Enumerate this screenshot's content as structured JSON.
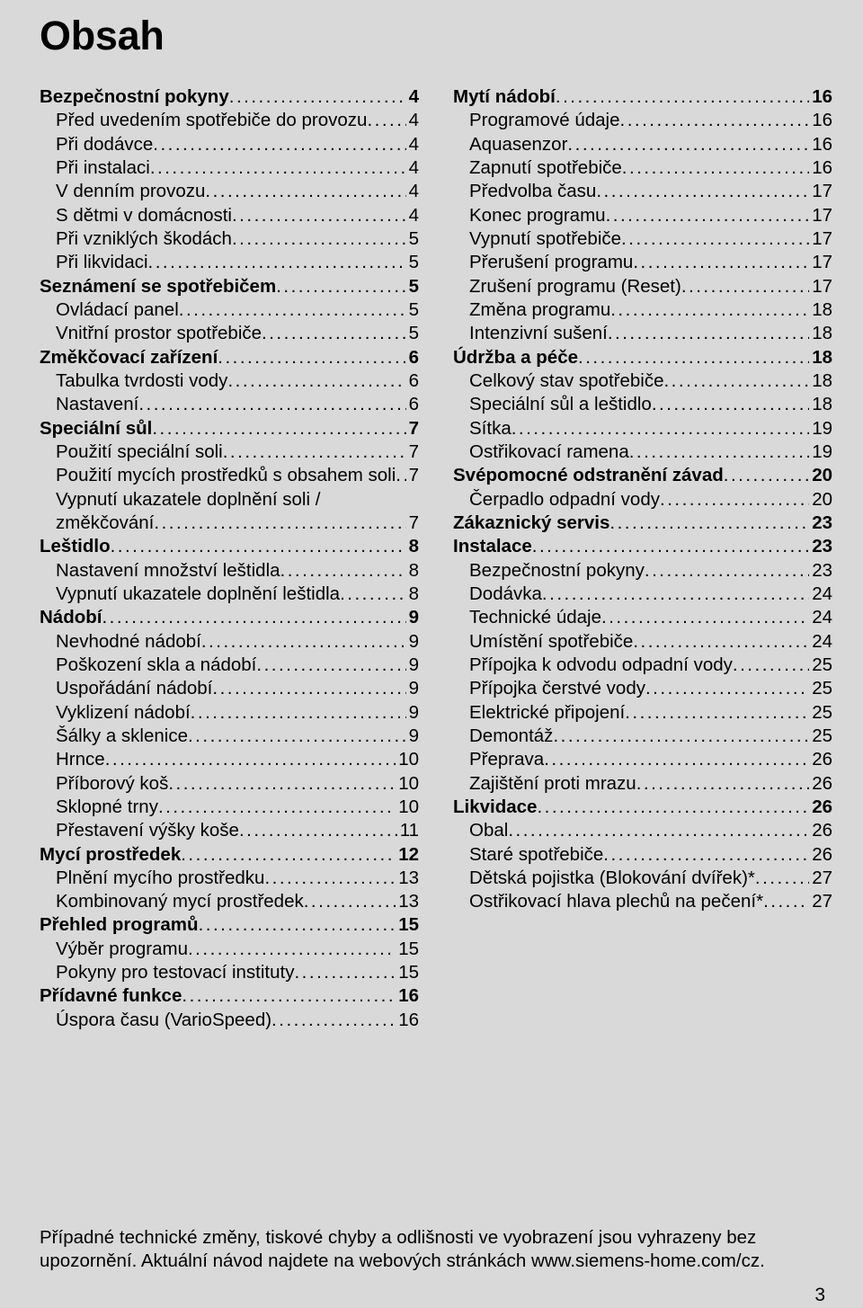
{
  "title": "Obsah",
  "left": [
    {
      "t": "s",
      "label": "Bezpečnostní pokyny",
      "page": "4"
    },
    {
      "t": "i",
      "label": "Před uvedením spotřebiče do provozu",
      "page": "4"
    },
    {
      "t": "i",
      "label": "Při dodávce",
      "page": "4"
    },
    {
      "t": "i",
      "label": "Při instalaci",
      "page": "4"
    },
    {
      "t": "i",
      "label": "V denním provozu",
      "page": "4"
    },
    {
      "t": "i",
      "label": "S dětmi v domácnosti",
      "page": "4"
    },
    {
      "t": "i",
      "label": "Při vzniklých škodách",
      "page": "5"
    },
    {
      "t": "i",
      "label": "Při likvidaci",
      "page": "5"
    },
    {
      "t": "s",
      "label": "Seznámení se spotřebičem",
      "page": "5"
    },
    {
      "t": "i",
      "label": "Ovládací panel",
      "page": "5"
    },
    {
      "t": "i",
      "label": "Vnitřní prostor spotřebiče",
      "page": "5"
    },
    {
      "t": "s",
      "label": "Změkčovací zařízení",
      "page": "6"
    },
    {
      "t": "i",
      "label": "Tabulka tvrdosti vody",
      "page": "6"
    },
    {
      "t": "i",
      "label": "Nastavení",
      "page": "6"
    },
    {
      "t": "s",
      "label": "Speciální sůl",
      "page": "7"
    },
    {
      "t": "i",
      "label": "Použití speciální soli",
      "page": "7"
    },
    {
      "t": "i",
      "label": "Použití mycích prostředků s obsahem soli",
      "page": "7"
    },
    {
      "t": "w",
      "label": "Vypnutí ukazatele doplnění soli /"
    },
    {
      "t": "i",
      "label": "změkčování",
      "page": "7"
    },
    {
      "t": "s",
      "label": "Leštidlo",
      "page": "8"
    },
    {
      "t": "i",
      "label": "Nastavení množství leštidla",
      "page": "8"
    },
    {
      "t": "i",
      "label": "Vypnutí ukazatele doplnění leštidla",
      "page": "8"
    },
    {
      "t": "s",
      "label": "Nádobí",
      "page": "9"
    },
    {
      "t": "i",
      "label": "Nevhodné nádobí",
      "page": "9"
    },
    {
      "t": "i",
      "label": "Poškození skla a nádobí",
      "page": "9"
    },
    {
      "t": "i",
      "label": "Uspořádání nádobí",
      "page": "9"
    },
    {
      "t": "i",
      "label": "Vyklizení nádobí",
      "page": "9"
    },
    {
      "t": "i",
      "label": "Šálky a sklenice",
      "page": "9"
    },
    {
      "t": "i",
      "label": "Hrnce",
      "page": "10"
    },
    {
      "t": "i",
      "label": "Příborový koš",
      "page": "10"
    },
    {
      "t": "i",
      "label": "Sklopné trny",
      "page": "10"
    },
    {
      "t": "i",
      "label": "Přestavení výšky koše",
      "page": "11"
    },
    {
      "t": "s",
      "label": "Mycí prostředek",
      "page": "12"
    },
    {
      "t": "i",
      "label": "Plnění mycího prostředku",
      "page": "13"
    },
    {
      "t": "i",
      "label": "Kombinovaný mycí prostředek",
      "page": "13"
    },
    {
      "t": "s",
      "label": "Přehled programů",
      "page": "15"
    },
    {
      "t": "i",
      "label": "Výběr programu",
      "page": "15"
    },
    {
      "t": "i",
      "label": "Pokyny pro testovací instituty",
      "page": "15"
    },
    {
      "t": "s",
      "label": "Přídavné funkce",
      "page": "16"
    },
    {
      "t": "i",
      "label": "Úspora času (VarioSpeed)",
      "page": "16"
    }
  ],
  "right": [
    {
      "t": "s",
      "label": "Mytí nádobí",
      "page": "16"
    },
    {
      "t": "i",
      "label": "Programové údaje",
      "page": "16"
    },
    {
      "t": "i",
      "label": "Aquasenzor",
      "page": "16"
    },
    {
      "t": "i",
      "label": "Zapnutí spotřebiče",
      "page": "16"
    },
    {
      "t": "i",
      "label": "Předvolba času",
      "page": "17"
    },
    {
      "t": "i",
      "label": "Konec programu",
      "page": "17"
    },
    {
      "t": "i",
      "label": "Vypnutí spotřebiče",
      "page": "17"
    },
    {
      "t": "i",
      "label": "Přerušení programu",
      "page": "17"
    },
    {
      "t": "i",
      "label": "Zrušení programu (Reset)",
      "page": "17"
    },
    {
      "t": "i",
      "label": "Změna programu",
      "page": "18"
    },
    {
      "t": "i",
      "label": "Intenzivní sušení",
      "page": "18"
    },
    {
      "t": "s",
      "label": "Údržba a péče",
      "page": "18"
    },
    {
      "t": "i",
      "label": "Celkový stav spotřebiče",
      "page": "18"
    },
    {
      "t": "i",
      "label": "Speciální sůl a leštidlo",
      "page": "18"
    },
    {
      "t": "i",
      "label": "Sítka",
      "page": "19"
    },
    {
      "t": "i",
      "label": "Ostřikovací ramena",
      "page": "19"
    },
    {
      "t": "s",
      "label": "Svépomocné odstranění závad",
      "page": "20"
    },
    {
      "t": "i",
      "label": "Čerpadlo odpadní vody",
      "page": "20"
    },
    {
      "t": "s",
      "label": "Zákaznický servis",
      "page": "23"
    },
    {
      "t": "s",
      "label": "Instalace",
      "page": "23"
    },
    {
      "t": "i",
      "label": "Bezpečnostní pokyny",
      "page": "23"
    },
    {
      "t": "i",
      "label": "Dodávka",
      "page": "24"
    },
    {
      "t": "i",
      "label": "Technické údaje",
      "page": "24"
    },
    {
      "t": "i",
      "label": "Umístění spotřebiče",
      "page": "24"
    },
    {
      "t": "i",
      "label": "Přípojka k odvodu odpadní vody",
      "page": "25"
    },
    {
      "t": "i",
      "label": "Přípojka čerstvé vody",
      "page": "25"
    },
    {
      "t": "i",
      "label": "Elektrické připojení",
      "page": "25"
    },
    {
      "t": "i",
      "label": "Demontáž",
      "page": "25"
    },
    {
      "t": "i",
      "label": "Přeprava",
      "page": "26"
    },
    {
      "t": "i",
      "label": "Zajištění proti mrazu",
      "page": "26"
    },
    {
      "t": "s",
      "label": "Likvidace",
      "page": "26"
    },
    {
      "t": "i",
      "label": "Obal",
      "page": "26"
    },
    {
      "t": "i",
      "label": "Staré spotřebiče",
      "page": "26"
    },
    {
      "t": "i",
      "label": "Dětská pojistka (Blokování dvířek)*",
      "page": "27"
    },
    {
      "t": "i",
      "label": "Ostřikovací hlava plechů na pečení*",
      "page": "27"
    }
  ],
  "footer": "Případné technické změny, tiskové chyby a odlišnosti ve vyobrazení jsou vyhrazeny bez upozornění. Aktuální návod najdete na webových stránkách www.siemens-home.com/cz.",
  "pageNumber": "3"
}
